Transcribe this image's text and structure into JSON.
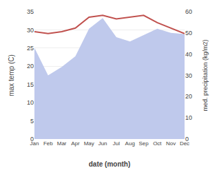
{
  "chart_data": {
    "type": "line",
    "xlabel": "date (month)",
    "ylabel": "max temp (C)",
    "y2label": "med. precipitation (kg/m2)",
    "categories": [
      "Jan",
      "Feb",
      "Mar",
      "Apr",
      "May",
      "Jun",
      "Jul",
      "Aug",
      "Sep",
      "Oct",
      "Nov",
      "Dec"
    ],
    "series": [
      {
        "type": "area",
        "axis": "y2",
        "color": "#bfc9ec",
        "values": [
          43.0,
          30.0,
          34.0,
          39.0,
          52.0,
          57.0,
          48.0,
          46.0,
          49.0,
          52.0,
          50.0,
          49.5
        ]
      },
      {
        "type": "line",
        "color": "#c0504d",
        "values": [
          29.5,
          29.0,
          29.5,
          30.5,
          33.5,
          34.0,
          33.0,
          33.5,
          34.0,
          32.0,
          30.5,
          29.0
        ]
      }
    ],
    "ylim": [
      0,
      35
    ],
    "yticks": [
      0,
      5,
      10,
      15,
      20,
      25,
      30,
      35
    ],
    "y2lim": [
      0,
      60
    ],
    "y2ticks": [
      0,
      10,
      20,
      30,
      40,
      50,
      60
    ],
    "grid": true
  }
}
